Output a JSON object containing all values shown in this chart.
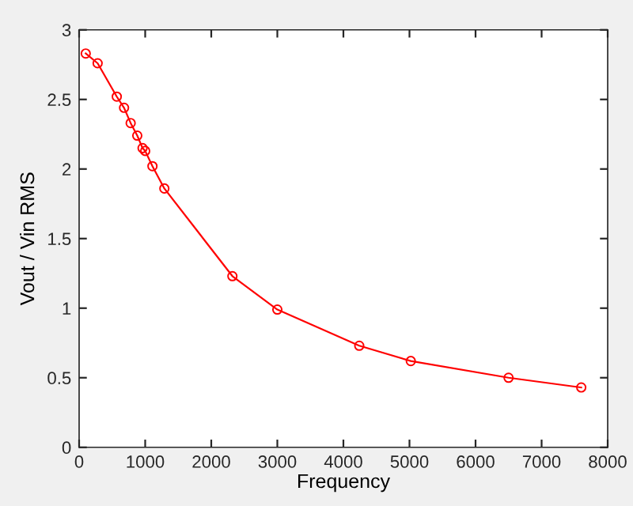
{
  "chart_data": {
    "type": "line",
    "xlabel": "Frequency",
    "ylabel": "Vout / Vin RMS",
    "x": [
      100,
      280,
      570,
      680,
      780,
      880,
      960,
      1000,
      1110,
      1290,
      2320,
      3000,
      4240,
      5020,
      6500,
      7600
    ],
    "series": [
      {
        "color": "#ff0000",
        "values": [
          2.83,
          2.76,
          2.52,
          2.44,
          2.33,
          2.24,
          2.15,
          2.13,
          2.02,
          1.86,
          1.23,
          0.99,
          0.73,
          0.62,
          0.5,
          0.43
        ]
      }
    ],
    "xlim": [
      0,
      8000
    ],
    "ylim": [
      0,
      3
    ],
    "xticks": [
      0,
      1000,
      2000,
      3000,
      4000,
      5000,
      6000,
      7000,
      8000
    ],
    "yticks": [
      0,
      0.5,
      1,
      1.5,
      2,
      2.5,
      3
    ],
    "marker": "circle",
    "line_style": "solid",
    "grid": false
  }
}
